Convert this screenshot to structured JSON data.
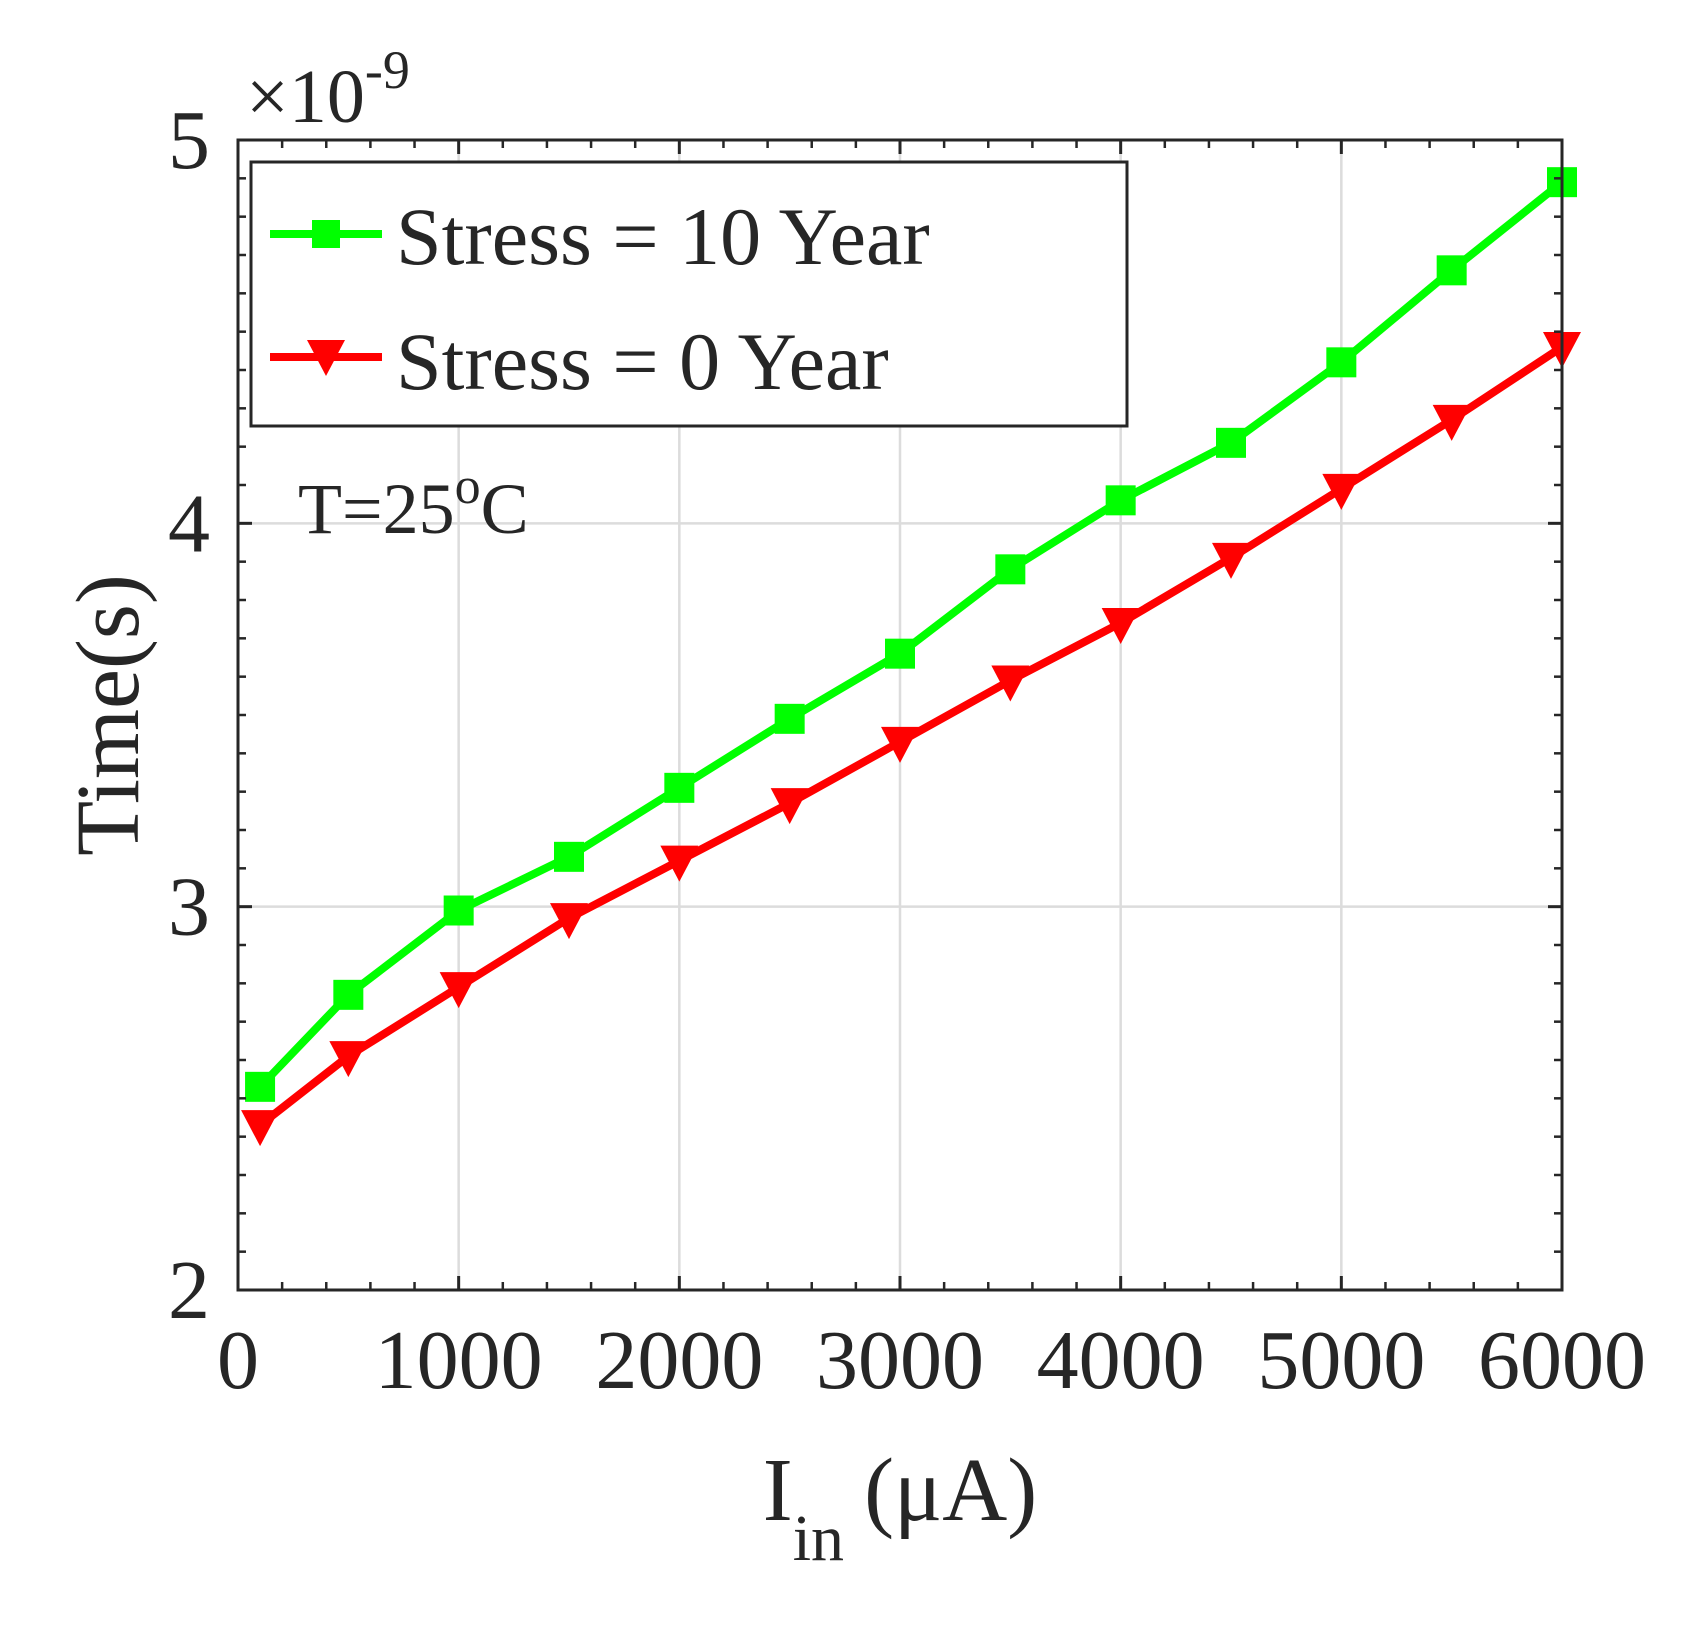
{
  "chart_data": {
    "type": "line",
    "title": "",
    "xlabel_main": "I",
    "xlabel_sub": "in",
    "xlabel_unit": "(μA)",
    "ylabel": "Time(s)",
    "y_exponent_prefix": "×10",
    "y_exponent_power": "-9",
    "xlim": [
      0,
      6000
    ],
    "ylim": [
      2,
      5
    ],
    "xticks": [
      0,
      1000,
      2000,
      3000,
      4000,
      5000,
      6000
    ],
    "xtick_labels": [
      "0",
      "1000",
      "2000",
      "3000",
      "4000",
      "5000",
      "6000"
    ],
    "yticks": [
      2,
      3,
      4,
      5
    ],
    "ytick_labels": [
      "2",
      "3",
      "4",
      "5"
    ],
    "grid": true,
    "legend_position": "top-left",
    "annotation": {
      "text": "T=25",
      "superscript": "o",
      "suffix": "C"
    },
    "x": [
      100,
      500,
      1000,
      1500,
      2000,
      2500,
      3000,
      3500,
      4000,
      4500,
      5000,
      5500,
      6000
    ],
    "series": [
      {
        "name": "Stress = 10 Year",
        "color": "#00ff00",
        "marker": "square",
        "values": [
          2.53,
          2.77,
          2.99,
          3.13,
          3.31,
          3.49,
          3.66,
          3.88,
          4.06,
          4.21,
          4.42,
          4.66,
          4.89
        ]
      },
      {
        "name": "Stress = 0 Year",
        "color": "#ff0000",
        "marker": "triangle-down",
        "values": [
          2.43,
          2.61,
          2.79,
          2.97,
          3.12,
          3.27,
          3.43,
          3.59,
          3.74,
          3.91,
          4.09,
          4.27,
          4.46
        ]
      }
    ]
  }
}
